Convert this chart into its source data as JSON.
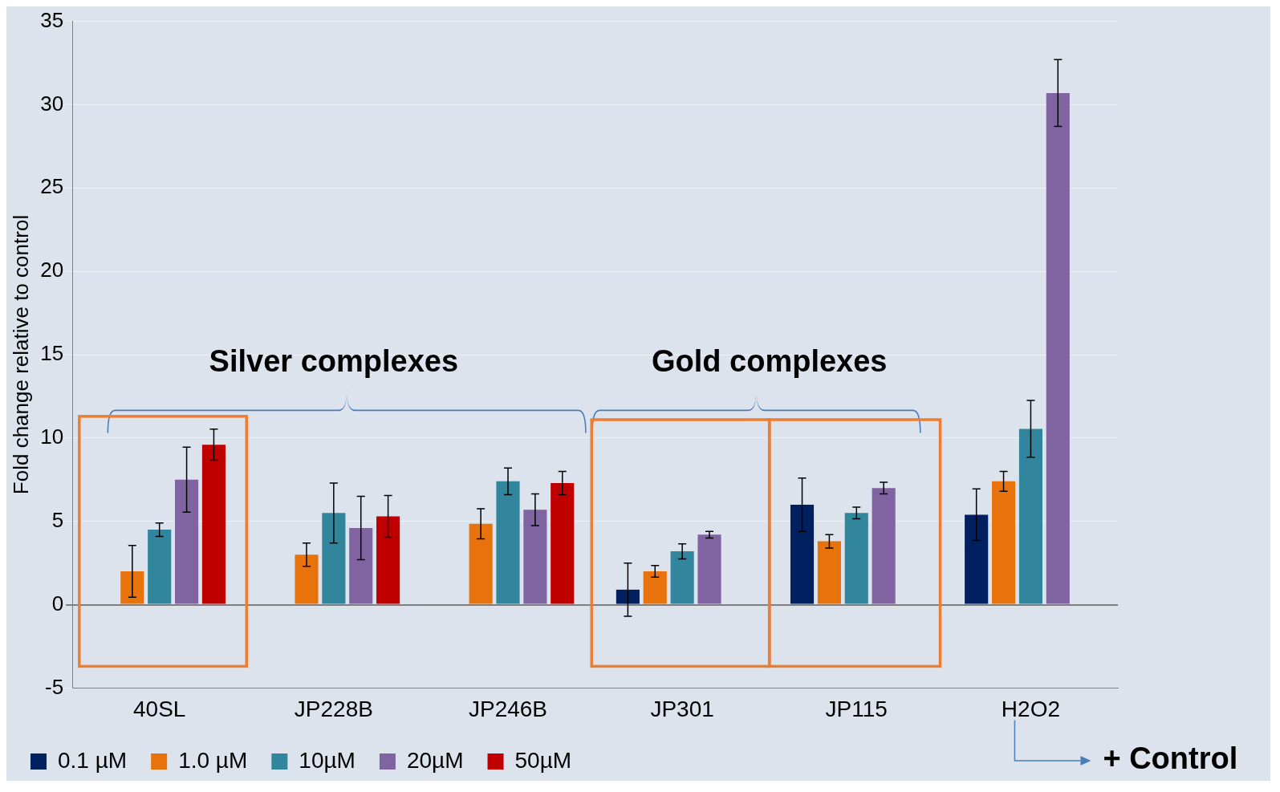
{
  "chart_data": {
    "type": "bar",
    "ylabel": "Fold change relative to control",
    "categories": [
      "40SL",
      "JP228B",
      "JP246B",
      "JP301",
      "JP115",
      "H2O2"
    ],
    "series": [
      {
        "name": "0.1 µM",
        "color": "#002060",
        "values": [
          null,
          null,
          null,
          0.9,
          6.0,
          5.4
        ],
        "errors": [
          null,
          null,
          null,
          1.6,
          1.6,
          1.55
        ]
      },
      {
        "name": "1.0 µM",
        "color": "#e8730c",
        "values": [
          2.0,
          3.0,
          4.85,
          2.0,
          3.8,
          7.4
        ],
        "errors": [
          1.55,
          0.7,
          0.9,
          0.35,
          0.4,
          0.6
        ]
      },
      {
        "name": "10µM",
        "color": "#31859c",
        "values": [
          4.5,
          5.5,
          7.4,
          3.2,
          5.5,
          10.55
        ],
        "errors": [
          0.4,
          1.8,
          0.8,
          0.45,
          0.35,
          1.7
        ]
      },
      {
        "name": "20µM",
        "color": "#8064a2",
        "values": [
          7.5,
          4.6,
          5.7,
          4.2,
          7.0,
          30.7
        ],
        "errors": [
          1.95,
          1.9,
          0.95,
          0.2,
          0.35,
          2.0
        ]
      },
      {
        "name": "50µM",
        "color": "#c00000",
        "values": [
          9.6,
          5.3,
          7.3,
          null,
          null,
          null
        ],
        "errors": [
          0.93,
          1.25,
          0.7,
          null,
          null,
          null
        ]
      }
    ],
    "ylim": [
      -5,
      35
    ],
    "yticks": [
      -5,
      0,
      5,
      10,
      15,
      20,
      25,
      30,
      35
    ],
    "grid": "y",
    "legend": "bottom",
    "annotations": [
      "Silver complexes",
      "Gold complexes",
      "+ Control"
    ]
  }
}
